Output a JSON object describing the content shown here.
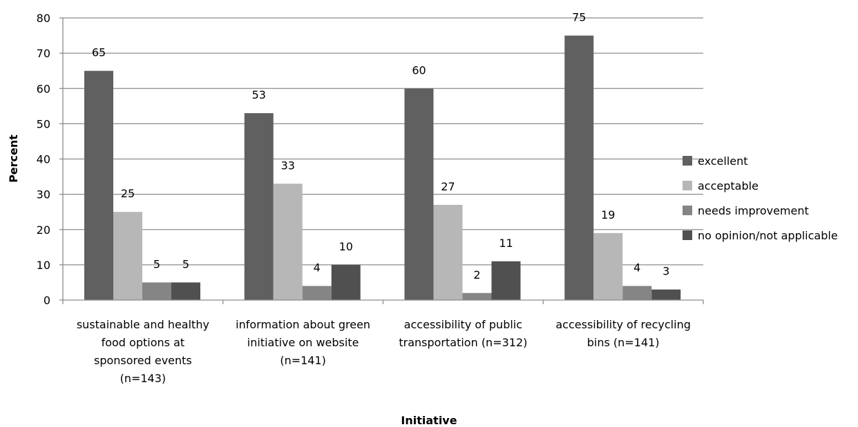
{
  "chart_data": {
    "type": "bar",
    "title": "",
    "xlabel": "Initiative",
    "ylabel": "Percent",
    "ylim": [
      0,
      80
    ],
    "yticks": [
      0,
      10,
      20,
      30,
      40,
      50,
      60,
      70,
      80
    ],
    "grid": true,
    "legend_position": "right",
    "categories": [
      [
        "sustainable and healthy",
        "food options at",
        "sponsored events",
        "(n=143)"
      ],
      [
        "information about green",
        "initiative on website",
        "(n=141)"
      ],
      [
        "accessibility of public",
        "transportation (n=312)"
      ],
      [
        "accessibility of recycling",
        "bins (n=141)"
      ]
    ],
    "series": [
      {
        "name": "excellent",
        "color": "#606060",
        "values": [
          65,
          53,
          60,
          75
        ]
      },
      {
        "name": "acceptable",
        "color": "#b7b7b7",
        "values": [
          25,
          33,
          27,
          19
        ]
      },
      {
        "name": "needs improvement",
        "color": "#858585",
        "values": [
          5,
          4,
          2,
          4
        ]
      },
      {
        "name": "no opinion/not applicable",
        "color": "#505050",
        "values": [
          5,
          10,
          11,
          3
        ]
      }
    ]
  }
}
